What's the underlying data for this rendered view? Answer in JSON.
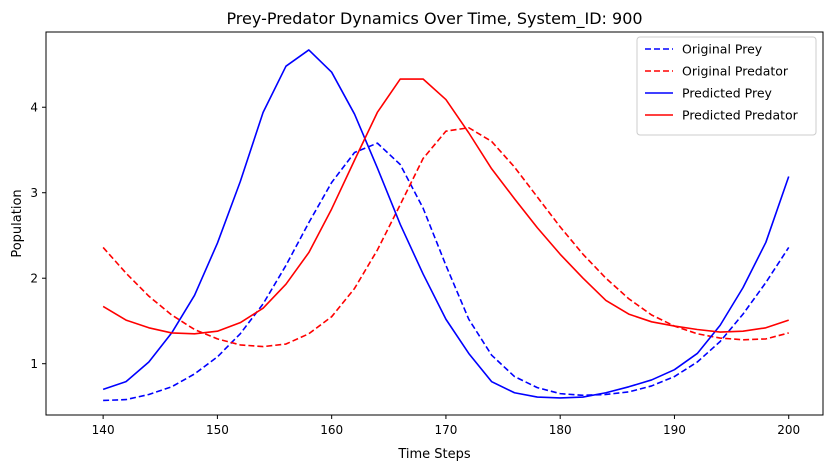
{
  "chart_data": {
    "type": "line",
    "title": "Prey-Predator Dynamics Over Time, System_ID: 900",
    "xlabel": "Time Steps",
    "ylabel": "Population",
    "xlim": [
      135,
      203
    ],
    "ylim": [
      0.4,
      4.88
    ],
    "xticks": [
      140,
      150,
      160,
      170,
      180,
      190,
      200
    ],
    "yticks": [
      1,
      2,
      3,
      4
    ],
    "grid": false,
    "legend_position": "top-right",
    "x": [
      140,
      142,
      144,
      146,
      148,
      150,
      152,
      154,
      156,
      158,
      160,
      162,
      164,
      166,
      168,
      170,
      172,
      174,
      176,
      178,
      180,
      182,
      184,
      186,
      188,
      190,
      192,
      194,
      196,
      198,
      200
    ],
    "series": [
      {
        "name": "Original Prey",
        "color": "#0000ff",
        "style": "dashed",
        "values": [
          0.57,
          0.58,
          0.64,
          0.73,
          0.88,
          1.08,
          1.35,
          1.7,
          2.15,
          2.65,
          3.12,
          3.47,
          3.58,
          3.33,
          2.82,
          2.15,
          1.52,
          1.1,
          0.85,
          0.72,
          0.65,
          0.63,
          0.64,
          0.67,
          0.74,
          0.85,
          1.02,
          1.26,
          1.58,
          1.95,
          2.36
        ]
      },
      {
        "name": "Original Predator",
        "color": "#ff0000",
        "style": "dashed",
        "values": [
          2.36,
          2.06,
          1.79,
          1.57,
          1.4,
          1.29,
          1.22,
          1.2,
          1.23,
          1.35,
          1.55,
          1.88,
          2.33,
          2.86,
          3.4,
          3.72,
          3.76,
          3.6,
          3.3,
          2.95,
          2.6,
          2.28,
          2.0,
          1.76,
          1.57,
          1.44,
          1.35,
          1.3,
          1.28,
          1.29,
          1.36
        ]
      },
      {
        "name": "Predicted Prey",
        "color": "#0000ff",
        "style": "solid",
        "values": [
          0.7,
          0.79,
          1.02,
          1.36,
          1.8,
          2.41,
          3.13,
          3.94,
          4.48,
          4.67,
          4.41,
          3.92,
          3.29,
          2.63,
          2.05,
          1.52,
          1.12,
          0.79,
          0.66,
          0.61,
          0.6,
          0.61,
          0.66,
          0.73,
          0.81,
          0.93,
          1.12,
          1.45,
          1.89,
          2.42,
          3.19
        ]
      },
      {
        "name": "Predicted Predator",
        "color": "#ff0000",
        "style": "solid",
        "values": [
          1.67,
          1.51,
          1.42,
          1.36,
          1.35,
          1.38,
          1.48,
          1.65,
          1.93,
          2.3,
          2.81,
          3.38,
          3.94,
          4.33,
          4.33,
          4.09,
          3.7,
          3.28,
          2.93,
          2.59,
          2.28,
          2.0,
          1.74,
          1.58,
          1.49,
          1.44,
          1.4,
          1.37,
          1.38,
          1.42,
          1.51
        ]
      }
    ]
  }
}
